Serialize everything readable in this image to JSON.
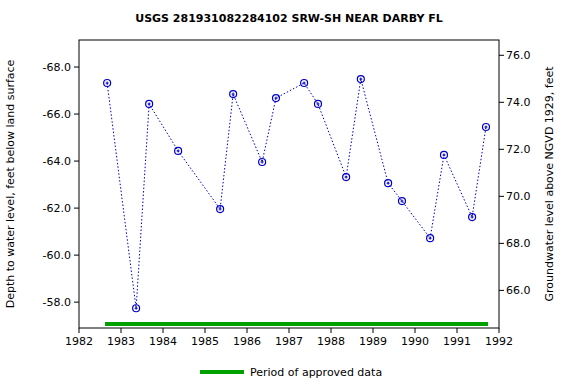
{
  "chart_data": {
    "type": "scatter",
    "title": "USGS 281931082284102 SRW-SH NEAR DARBY FL",
    "y_label": "Depth to water level, feet below land surface",
    "y2_label": "Groundwater level above NGVD 1929, feet",
    "x": [
      1982.67,
      1983.36,
      1983.67,
      1984.36,
      1985.36,
      1985.67,
      1986.36,
      1986.69,
      1987.36,
      1987.69,
      1988.36,
      1988.71,
      1989.36,
      1989.69,
      1990.36,
      1990.69,
      1991.36,
      1991.69
    ],
    "values": [
      -67.32,
      -57.74,
      -66.43,
      -64.43,
      -61.96,
      -66.85,
      -63.96,
      -66.68,
      -67.32,
      -66.43,
      -63.32,
      -67.49,
      -63.06,
      -62.3,
      -60.72,
      -64.26,
      -61.62,
      -65.45
    ],
    "color": "#0000cc",
    "marker": "circle",
    "line_style": "dotted",
    "grid": false,
    "xlim": [
      1982,
      1992
    ],
    "xticks": [
      1982,
      1983,
      1984,
      1985,
      1986,
      1987,
      1988,
      1989,
      1990,
      1991,
      1992
    ],
    "ylim": [
      -56.9,
      -69.15
    ],
    "yticks": [
      {
        "value": -68,
        "label": "-68.0"
      },
      {
        "value": -66,
        "label": "-66.0"
      },
      {
        "value": -64,
        "label": "-64.0"
      },
      {
        "value": -62,
        "label": "-62.0"
      },
      {
        "value": -60,
        "label": "-60.0"
      },
      {
        "value": -58,
        "label": "-58.0"
      }
    ],
    "y2lim": [
      64.4,
      76.65
    ],
    "y2ticks": [
      {
        "value": 66,
        "label": "66.0"
      },
      {
        "value": 68,
        "label": "68.0"
      },
      {
        "value": 70,
        "label": "70.0"
      },
      {
        "value": 72,
        "label": "72.0"
      },
      {
        "value": 74,
        "label": "74.0"
      },
      {
        "value": 76,
        "label": "76.0"
      }
    ],
    "approved_period": {
      "name": "Period of approved data",
      "color": "#00a000",
      "range": [
        1982.62,
        1991.74
      ]
    }
  }
}
